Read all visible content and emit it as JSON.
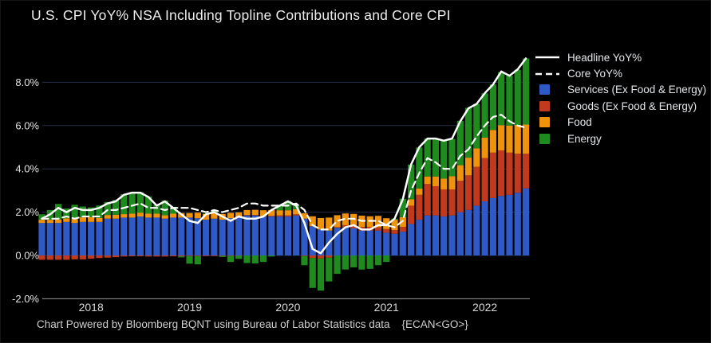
{
  "title": "U.S. CPI YoY% NSA Including Topline Contributions and Core CPI",
  "footer": "Chart Powered by Bloomberg BQNT using Bureau of Labor Statistics data    {ECAN<GO>}",
  "colors": {
    "background": "#000000",
    "grid": "#272e46",
    "axis_line": "#9a9a9a",
    "tick_text": "#e4e4e4",
    "year_text": "#d8d8d8",
    "services": "#2e59c6",
    "goods": "#c23a1d",
    "food": "#ef930d",
    "energy": "#1f8b1f",
    "headline_line": "#ffffff",
    "core_line": "#ffffff"
  },
  "legend": {
    "items": [
      {
        "label": "Headline YoY%",
        "type": "line",
        "color": "#ffffff"
      },
      {
        "label": "Core YoY%",
        "type": "dashed-line",
        "color": "#ffffff"
      },
      {
        "label": "Services (Ex Food & Energy)",
        "type": "box",
        "color": "#2e59c6"
      },
      {
        "label": "Goods (Ex Food & Energy)",
        "type": "box",
        "color": "#c23a1d"
      },
      {
        "label": "Food",
        "type": "box",
        "color": "#ef930d"
      },
      {
        "label": "Energy",
        "type": "box",
        "color": "#1f8b1f"
      }
    ]
  },
  "chart_data": {
    "type": "bar",
    "stacked": true,
    "title": "U.S. CPI YoY% NSA Including Topline Contributions and Core CPI",
    "xlabel": "",
    "ylabel": "",
    "ylim": [
      -2,
      9.5
    ],
    "grid": "horizontal",
    "legend_position": "top-right",
    "months": [
      "Jul 2017",
      "Aug 2017",
      "Sep 2017",
      "Oct 2017",
      "Nov 2017",
      "Dec 2017",
      "Jan 2018",
      "Feb 2018",
      "Mar 2018",
      "Apr 2018",
      "May 2018",
      "Jun 2018",
      "Jul 2018",
      "Aug 2018",
      "Sep 2018",
      "Oct 2018",
      "Nov 2018",
      "Dec 2018",
      "Jan 2019",
      "Feb 2019",
      "Mar 2019",
      "Apr 2019",
      "May 2019",
      "Jun 2019",
      "Jul 2019",
      "Aug 2019",
      "Sep 2019",
      "Oct 2019",
      "Nov 2019",
      "Dec 2019",
      "Jan 2020",
      "Feb 2020",
      "Mar 2020",
      "Apr 2020",
      "May 2020",
      "Jun 2020",
      "Jul 2020",
      "Aug 2020",
      "Sep 2020",
      "Oct 2020",
      "Nov 2020",
      "Dec 2020",
      "Jan 2021",
      "Feb 2021",
      "Mar 2021",
      "Apr 2021",
      "May 2021",
      "Jun 2021",
      "Jul 2021",
      "Aug 2021",
      "Sep 2021",
      "Oct 2021",
      "Nov 2021",
      "Dec 2021",
      "Jan 2022",
      "Feb 2022",
      "Mar 2022",
      "Apr 2022",
      "May 2022",
      "Jun 2022"
    ],
    "series": [
      {
        "name": "Services (Ex Food & Energy)",
        "color": "#2e59c6",
        "values": [
          1.5,
          1.5,
          1.5,
          1.55,
          1.5,
          1.55,
          1.55,
          1.55,
          1.7,
          1.7,
          1.75,
          1.75,
          1.8,
          1.75,
          1.75,
          1.7,
          1.75,
          1.75,
          1.75,
          1.72,
          1.65,
          1.7,
          1.65,
          1.72,
          1.75,
          1.85,
          1.85,
          1.8,
          1.8,
          1.8,
          1.8,
          1.85,
          1.7,
          1.35,
          1.2,
          1.15,
          1.28,
          1.3,
          1.25,
          1.15,
          1.15,
          1.15,
          1.05,
          1.0,
          1.1,
          1.45,
          1.65,
          1.85,
          1.85,
          1.8,
          1.85,
          2.0,
          2.1,
          2.3,
          2.5,
          2.65,
          2.75,
          2.8,
          2.9,
          3.1
        ]
      },
      {
        "name": "Goods (Ex Food & Energy)",
        "color": "#c23a1d",
        "values": [
          -0.2,
          -0.2,
          -0.2,
          -0.2,
          -0.18,
          -0.18,
          -0.15,
          -0.12,
          -0.1,
          -0.08,
          -0.05,
          -0.04,
          -0.04,
          -0.05,
          -0.05,
          -0.05,
          -0.04,
          -0.04,
          -0.03,
          -0.03,
          -0.03,
          -0.03,
          -0.02,
          -0.02,
          -0.01,
          0.02,
          0.02,
          0.02,
          0.03,
          0.05,
          0.05,
          0.05,
          -0.03,
          -0.12,
          -0.14,
          -0.1,
          0.03,
          0.1,
          0.15,
          0.17,
          0.16,
          0.16,
          0.17,
          0.17,
          0.22,
          0.85,
          1.15,
          1.45,
          1.35,
          1.25,
          1.2,
          1.45,
          1.6,
          1.8,
          2.0,
          2.1,
          2.1,
          1.95,
          1.8,
          1.6
        ]
      },
      {
        "name": "Food",
        "color": "#ef930d",
        "values": [
          0.15,
          0.15,
          0.16,
          0.17,
          0.18,
          0.21,
          0.22,
          0.18,
          0.17,
          0.18,
          0.16,
          0.18,
          0.18,
          0.18,
          0.18,
          0.16,
          0.18,
          0.21,
          0.21,
          0.26,
          0.27,
          0.25,
          0.27,
          0.25,
          0.24,
          0.23,
          0.24,
          0.27,
          0.27,
          0.24,
          0.24,
          0.24,
          0.25,
          0.46,
          0.53,
          0.6,
          0.55,
          0.54,
          0.52,
          0.52,
          0.5,
          0.52,
          0.5,
          0.48,
          0.45,
          0.3,
          0.29,
          0.35,
          0.45,
          0.5,
          0.61,
          0.72,
          0.82,
          0.85,
          0.94,
          1.05,
          1.17,
          1.25,
          1.33,
          1.35
        ]
      },
      {
        "name": "Energy",
        "color": "#1f8b1f",
        "values": [
          0.25,
          0.45,
          0.72,
          0.45,
          0.66,
          0.5,
          0.45,
          0.58,
          0.6,
          0.68,
          0.92,
          0.98,
          0.94,
          0.8,
          0.4,
          0.68,
          0.32,
          -0.05,
          -0.35,
          -0.38,
          0.02,
          0.12,
          -0.05,
          -0.28,
          -0.15,
          -0.35,
          -0.37,
          -0.3,
          -0.05,
          0.25,
          0.42,
          0.18,
          -0.42,
          -1.38,
          -1.48,
          -1.1,
          -0.85,
          -0.65,
          -0.55,
          -0.65,
          -0.62,
          -0.45,
          -0.3,
          0.05,
          0.85,
          1.6,
          1.9,
          1.75,
          1.7,
          1.75,
          1.72,
          2.05,
          2.3,
          2.05,
          2.05,
          2.1,
          2.45,
          2.3,
          2.55,
          3.05
        ]
      }
    ],
    "lines": [
      {
        "name": "Headline YoY%",
        "style": "solid",
        "color": "#ffffff",
        "values": [
          1.7,
          1.9,
          2.2,
          2.0,
          2.2,
          2.1,
          2.1,
          2.2,
          2.4,
          2.5,
          2.8,
          2.9,
          2.9,
          2.7,
          2.3,
          2.5,
          2.2,
          1.9,
          1.6,
          1.5,
          1.9,
          2.0,
          1.8,
          1.6,
          1.8,
          1.7,
          1.7,
          1.8,
          2.1,
          2.3,
          2.5,
          2.3,
          1.5,
          0.3,
          0.1,
          0.6,
          1.0,
          1.3,
          1.4,
          1.2,
          1.2,
          1.4,
          1.4,
          1.7,
          2.6,
          4.2,
          5.0,
          5.4,
          5.4,
          5.3,
          5.4,
          6.2,
          6.8,
          7.0,
          7.5,
          7.9,
          8.5,
          8.3,
          8.6,
          9.1
        ]
      },
      {
        "name": "Core YoY%",
        "style": "dashed",
        "color": "#ffffff",
        "values": [
          1.7,
          1.7,
          1.7,
          1.8,
          1.7,
          1.8,
          1.8,
          1.8,
          2.1,
          2.1,
          2.2,
          2.3,
          2.4,
          2.2,
          2.2,
          2.1,
          2.2,
          2.2,
          2.2,
          2.1,
          2.0,
          2.1,
          2.0,
          2.1,
          2.2,
          2.4,
          2.4,
          2.3,
          2.3,
          2.3,
          2.3,
          2.4,
          2.1,
          1.4,
          1.2,
          1.2,
          1.6,
          1.7,
          1.7,
          1.6,
          1.6,
          1.6,
          1.4,
          1.3,
          1.6,
          3.0,
          3.8,
          4.5,
          4.3,
          4.0,
          4.0,
          4.6,
          4.9,
          5.5,
          6.0,
          6.4,
          6.5,
          6.2,
          6.0,
          5.9
        ]
      }
    ],
    "y_ticks": [
      {
        "value": 8,
        "label": "8.0%"
      },
      {
        "value": 6,
        "label": "6.0%"
      },
      {
        "value": 4,
        "label": "4.0%"
      },
      {
        "value": 2,
        "label": "2.0%"
      },
      {
        "value": 0,
        "label": "0.0%"
      },
      {
        "value": -2,
        "label": "-2.0%"
      }
    ],
    "x_ticks": [
      {
        "label": "2018",
        "month_index": 6
      },
      {
        "label": "2019",
        "month_index": 18
      },
      {
        "label": "2020",
        "month_index": 30
      },
      {
        "label": "2021",
        "month_index": 42
      },
      {
        "label": "2022",
        "month_index": 54
      }
    ]
  }
}
